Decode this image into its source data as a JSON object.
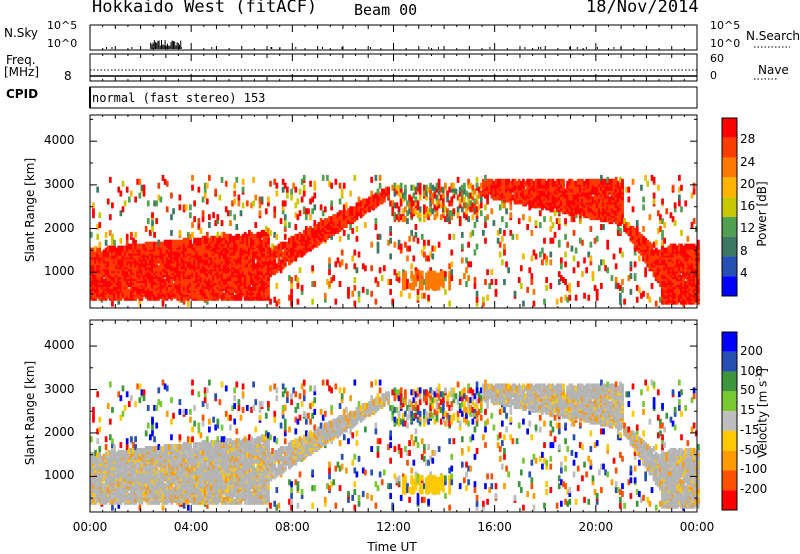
{
  "header": {
    "station": "Hokkaido West (fitACF)",
    "beam": "Beam 00",
    "date": "18/Nov/2014"
  },
  "colors": {
    "power_scale": [
      "#0000ff",
      "#2850b4",
      "#3c7864",
      "#50a050",
      "#c8c800",
      "#ffb400",
      "#ff7800",
      "#ff3c00",
      "#ff0000"
    ],
    "velocity_scale": [
      "#ff0000",
      "#ff5000",
      "#ff9a00",
      "#ffc800",
      "#bebebe",
      "#78c832",
      "#3c963c",
      "#2850b4",
      "#0000ff"
    ],
    "ground_scatter": "#b4b4b4"
  },
  "chart_data": [
    {
      "type": "line",
      "name": "noise-panel",
      "labels": {
        "left": "N.Sky",
        "right": "N.Search"
      },
      "ticks_left": [
        "10^5",
        "10^0"
      ],
      "ticks_right": [
        "10^5",
        "10^0"
      ],
      "y_scale": "log",
      "ylim": [
        1,
        100000
      ],
      "x": [
        "00:00",
        "04:00",
        "08:00",
        "12:00",
        "16:00",
        "20:00",
        "00:00"
      ],
      "burst_window_ut": [
        2.4,
        3.6
      ]
    },
    {
      "type": "line",
      "name": "freq-nave-panel",
      "labels": {
        "left_line1": "Freq.",
        "left_line2": "[MHz]",
        "right": "Nave"
      },
      "ticks_left": [
        "8"
      ],
      "ticks_right": [
        "60",
        "0"
      ],
      "freq_mhz": 8,
      "nave": 11
    },
    {
      "type": "table",
      "name": "cpid-bar",
      "label": "CPID",
      "value": "normal (fast stereo) 153"
    },
    {
      "type": "heatmap",
      "name": "power-panel",
      "ylabel": "Slant Range [km]",
      "yticks": [
        1000,
        2000,
        3000,
        4000
      ],
      "ylim": [
        180,
        4600
      ],
      "xlim_hours": [
        0,
        24
      ],
      "colorbar": {
        "label": "Power [dB]",
        "ticks": [
          4,
          8,
          12,
          16,
          20,
          24,
          28
        ],
        "range": [
          0,
          32
        ]
      }
    },
    {
      "type": "heatmap",
      "name": "velocity-panel",
      "ylabel": "Slant Range [km]",
      "yticks": [
        1000,
        2000,
        3000,
        4000
      ],
      "ylim": [
        180,
        4600
      ],
      "xlim_hours": [
        0,
        24
      ],
      "colorbar": {
        "label_main": "Velocity [m s",
        "label_sup": "-1",
        "label_end": "]",
        "ticks": [
          "200",
          "100",
          "50",
          "15",
          "-15",
          "-50",
          "-100",
          "-200"
        ]
      }
    }
  ],
  "xaxis": {
    "ticks": [
      "00:00",
      "04:00",
      "08:00",
      "12:00",
      "16:00",
      "20:00",
      "00:00"
    ],
    "label": "Time UT"
  }
}
